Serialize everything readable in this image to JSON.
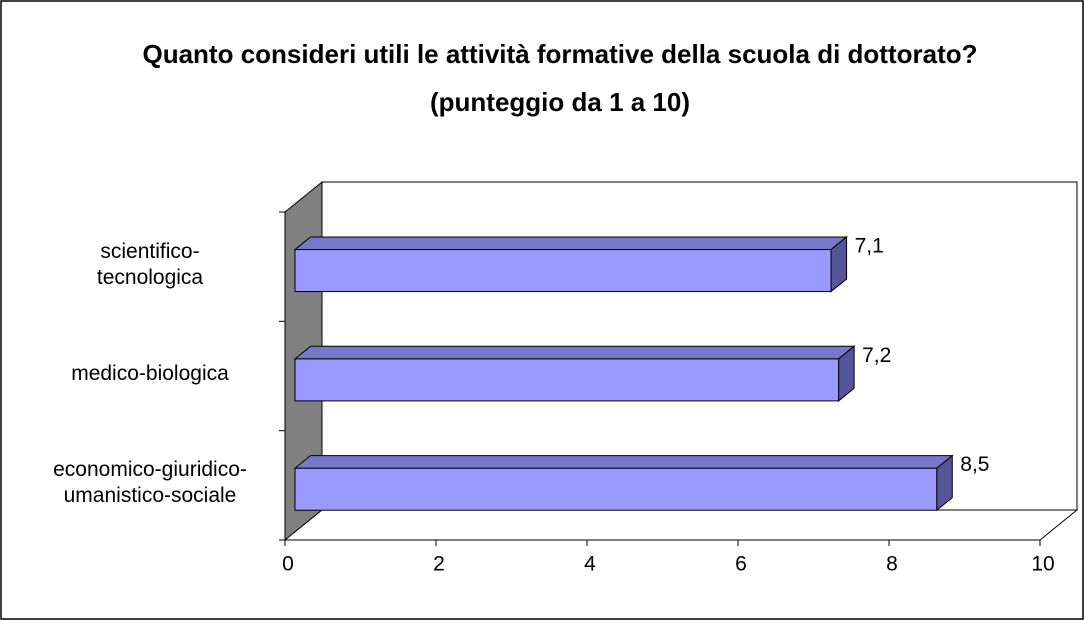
{
  "chart_data": {
    "type": "bar",
    "orientation": "horizontal",
    "three_d": true,
    "title": "Quanto consideri utili le attività formative della scuola di dottorato? (punteggio da 1 a 10)",
    "categories": [
      "scientifico-\ntecnologica",
      "medico-biologica",
      "economico-giuridico-\numanistico-sociale"
    ],
    "values": [
      7.1,
      7.2,
      8.5
    ],
    "value_labels": [
      "7,1",
      "7,2",
      "8,5"
    ],
    "color": "#9999ff",
    "xlim": [
      0,
      10
    ],
    "xticks": [
      0,
      2,
      4,
      6,
      8,
      10
    ]
  }
}
